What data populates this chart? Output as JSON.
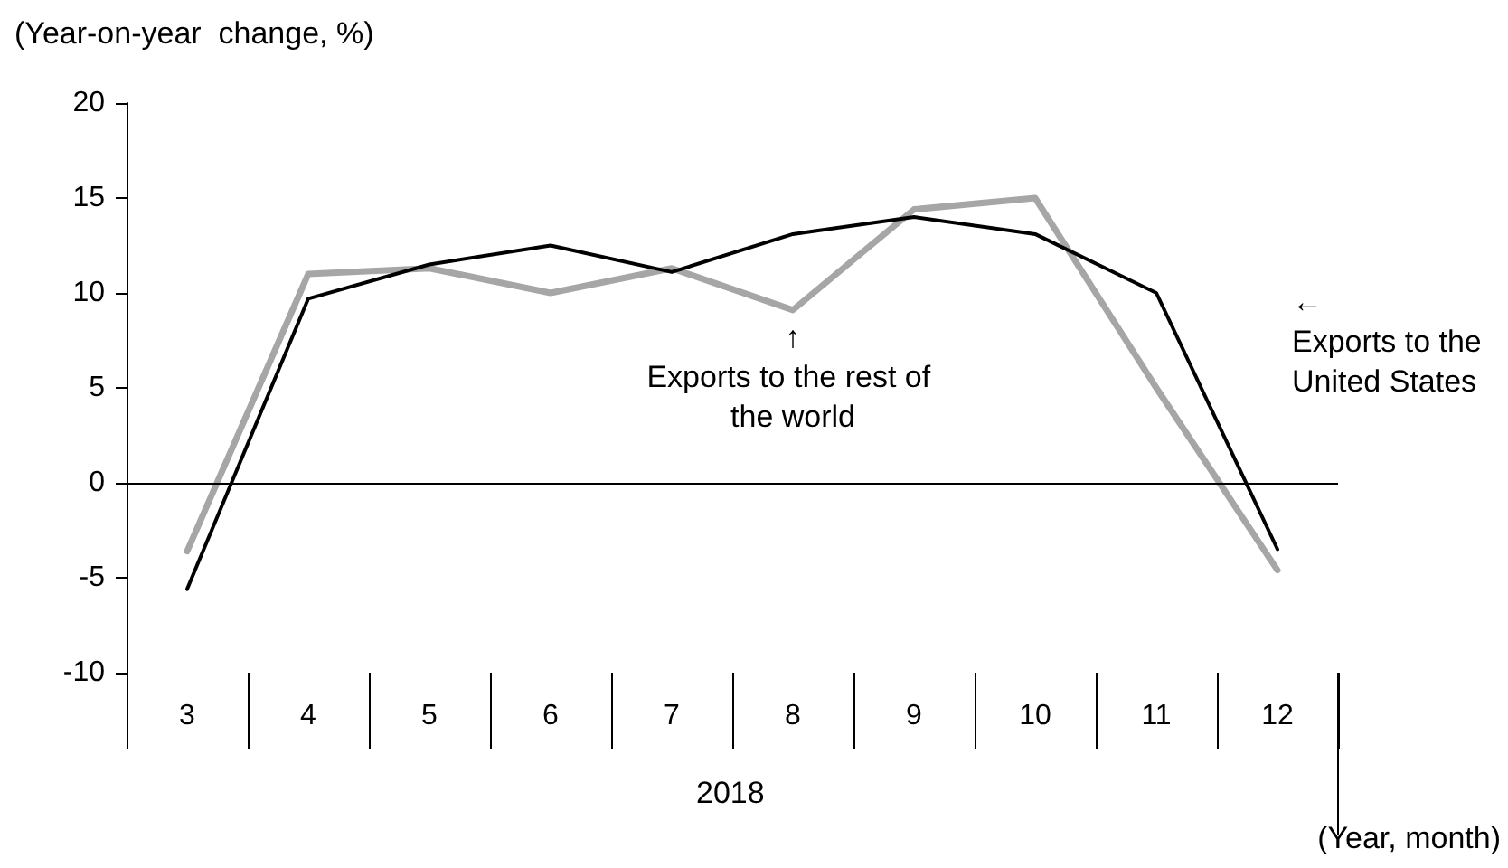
{
  "chart_data": {
    "type": "line",
    "ylabel": "(Year-on-year  change, %)",
    "xlabel": "(Year, month)",
    "categories": [
      "3",
      "4",
      "5",
      "6",
      "7",
      "8",
      "9",
      "10",
      "11",
      "12"
    ],
    "series": [
      {
        "name": "Exports to the rest of the world",
        "color": "#a6a6a6",
        "values": [
          -3.6,
          11.0,
          11.3,
          10.0,
          11.3,
          9.1,
          14.4,
          15.0,
          5.0,
          -4.6
        ]
      },
      {
        "name": "Exports to the United States",
        "color": "#000000",
        "values": [
          -5.6,
          9.7,
          11.5,
          12.5,
          11.1,
          13.1,
          14.0,
          13.1,
          10.0,
          -3.5
        ]
      }
    ],
    "ylim": [
      -10,
      20
    ],
    "yticks": [
      -10,
      -5,
      0,
      5,
      10,
      15,
      20
    ],
    "annotations": [
      "2018",
      "↑",
      "←"
    ],
    "ref_lines": [
      {
        "axis": "y",
        "value": 0,
        "color": "#000000",
        "line_style": "solid"
      }
    ],
    "marker": "none",
    "line_style": "solid",
    "grid": false,
    "legend": false
  }
}
